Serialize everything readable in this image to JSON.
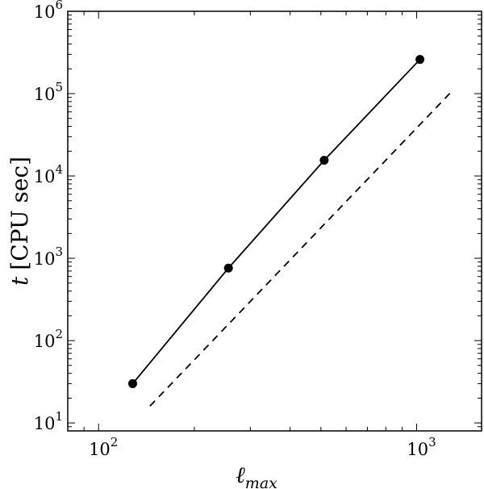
{
  "chart_data": {
    "type": "line",
    "title": "",
    "x_scale": "log",
    "y_scale": "log",
    "xlim": [
      80,
      1600
    ],
    "ylim": [
      8,
      1000000
    ],
    "xlabel": {
      "main": "ℓ",
      "sub": "max"
    },
    "ylabel": {
      "var": "t",
      "text": "[CPU sec]"
    },
    "x_ticks": [
      {
        "value": 100,
        "base": "10",
        "exp": "2"
      },
      {
        "value": 1000,
        "base": "10",
        "exp": "3"
      }
    ],
    "y_ticks": [
      {
        "value": 10,
        "base": "10",
        "exp": "1"
      },
      {
        "value": 100,
        "base": "10",
        "exp": "2"
      },
      {
        "value": 1000,
        "base": "10",
        "exp": "3"
      },
      {
        "value": 10000,
        "base": "10",
        "exp": "4"
      },
      {
        "value": 100000,
        "base": "10",
        "exp": "5"
      },
      {
        "value": 1000000,
        "base": "10",
        "exp": "6"
      }
    ],
    "series": [
      {
        "style": "solid-with-markers",
        "color": "#000000",
        "x": [
          128,
          256,
          512,
          1024
        ],
        "y": [
          30,
          760,
          15500,
          260000
        ]
      },
      {
        "style": "dashed",
        "color": "#000000",
        "x": [
          145,
          1300
        ],
        "y": [
          16,
          110000
        ]
      }
    ],
    "grid": false,
    "legend": "none"
  }
}
